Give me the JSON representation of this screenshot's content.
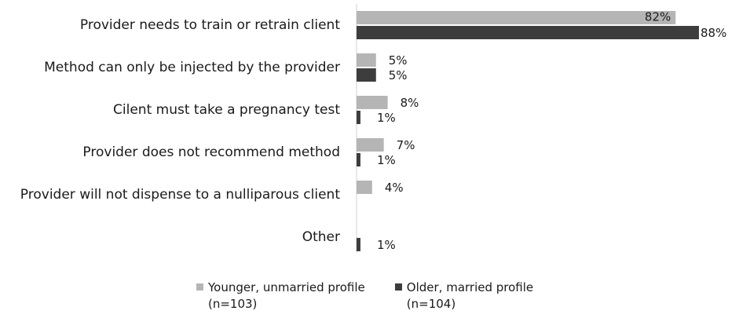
{
  "chart_data": {
    "type": "bar",
    "orientation": "horizontal",
    "categories": [
      "Provider needs to train or retrain client",
      "Method can only be injected by the provider",
      "Cilent must take a pregnancy test",
      "Provider does not recommend method",
      "Provider will not dispense to a nulliparous client",
      "Other"
    ],
    "series": [
      {
        "name": "Younger, unmarried profile (n=103)",
        "legend_lines": [
          "Younger, unmarried profile",
          "(n=103)"
        ],
        "color": "#b5b5b5",
        "values": [
          82,
          5,
          8,
          7,
          4,
          null
        ],
        "labels": [
          "82%",
          "5%",
          "8%",
          "7%",
          "4%",
          ""
        ]
      },
      {
        "name": "Older, married profile (n=104)",
        "legend_lines": [
          "Older, married profile",
          "(n=104)"
        ],
        "color": "#3d3d3d",
        "values": [
          88,
          5,
          1,
          1,
          null,
          1
        ],
        "labels": [
          "88%",
          "5%",
          "1%",
          "1%",
          "",
          "1%"
        ]
      }
    ],
    "xlim": [
      0,
      100
    ],
    "grid": false,
    "legend_position": "bottom"
  }
}
